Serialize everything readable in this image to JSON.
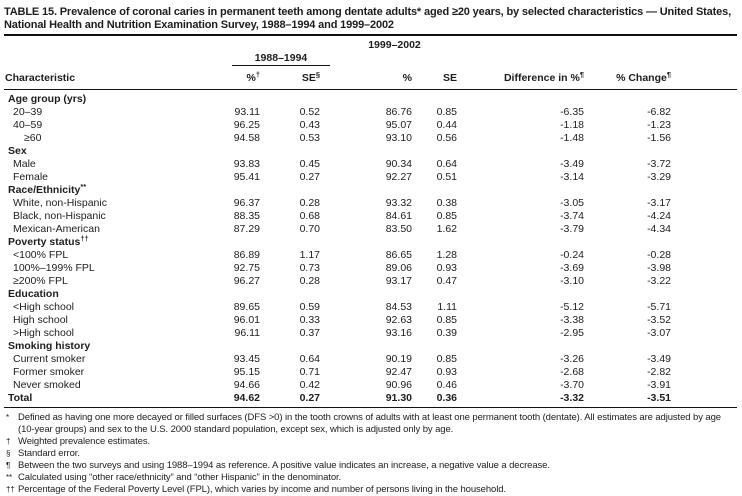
{
  "title": "TABLE 15. Prevalence of coronal caries in permanent teeth among dentate adults* aged ≥20 years, by selected characteristics — United States, National Health and Nutrition Examination Survey, 1988–1994 and 1999–2002",
  "table": {
    "col_groups": [
      {
        "label": "1988–1994"
      },
      {
        "label": "1999–2002"
      }
    ],
    "columns": [
      {
        "label": "Characteristic",
        "sup": ""
      },
      {
        "label": "%",
        "sup": "†"
      },
      {
        "label": "SE",
        "sup": "§"
      },
      {
        "label": "%",
        "sup": ""
      },
      {
        "label": "SE",
        "sup": ""
      },
      {
        "label": "Difference in %",
        "sup": "¶"
      },
      {
        "label": "% Change",
        "sup": "¶"
      }
    ],
    "rows": [
      {
        "type": "section",
        "label": "Age group (yrs)",
        "sup": ""
      },
      {
        "type": "data",
        "label": "20–39",
        "sup": "",
        "indent": 1,
        "values": [
          "93.11",
          "0.52",
          "86.76",
          "0.85",
          "-6.35",
          "-6.82"
        ]
      },
      {
        "type": "data",
        "label": "40–59",
        "sup": "",
        "indent": 1,
        "values": [
          "96.25",
          "0.43",
          "95.07",
          "0.44",
          "-1.18",
          "-1.23"
        ]
      },
      {
        "type": "data",
        "label": "≥60",
        "sup": "",
        "indent": 2,
        "values": [
          "94.58",
          "0.53",
          "93.10",
          "0.56",
          "-1.48",
          "-1.56"
        ]
      },
      {
        "type": "section",
        "label": "Sex",
        "sup": ""
      },
      {
        "type": "data",
        "label": "Male",
        "sup": "",
        "indent": 1,
        "values": [
          "93.83",
          "0.45",
          "90.34",
          "0.64",
          "-3.49",
          "-3.72"
        ]
      },
      {
        "type": "data",
        "label": "Female",
        "sup": "",
        "indent": 1,
        "values": [
          "95.41",
          "0.27",
          "92.27",
          "0.51",
          "-3.14",
          "-3.29"
        ]
      },
      {
        "type": "section",
        "label": "Race/Ethnicity",
        "sup": "**"
      },
      {
        "type": "data",
        "label": "White, non-Hispanic",
        "sup": "",
        "indent": 1,
        "values": [
          "96.37",
          "0.28",
          "93.32",
          "0.38",
          "-3.05",
          "-3.17"
        ]
      },
      {
        "type": "data",
        "label": "Black, non-Hispanic",
        "sup": "",
        "indent": 1,
        "values": [
          "88.35",
          "0.68",
          "84.61",
          "0.85",
          "-3.74",
          "-4.24"
        ]
      },
      {
        "type": "data",
        "label": "Mexican-American",
        "sup": "",
        "indent": 1,
        "values": [
          "87.29",
          "0.70",
          "83.50",
          "1.62",
          "-3.79",
          "-4.34"
        ]
      },
      {
        "type": "section",
        "label": "Poverty status",
        "sup": "††"
      },
      {
        "type": "data",
        "label": "<100% FPL",
        "sup": "",
        "indent": 1,
        "values": [
          "86.89",
          "1.17",
          "86.65",
          "1.28",
          "-0.24",
          "-0.28"
        ]
      },
      {
        "type": "data",
        "label": "100%–199% FPL",
        "sup": "",
        "indent": 1,
        "values": [
          "92.75",
          "0.73",
          "89.06",
          "0.93",
          "-3.69",
          "-3.98"
        ]
      },
      {
        "type": "data",
        "label": "≥200% FPL",
        "sup": "",
        "indent": 1,
        "values": [
          "96.27",
          "0.28",
          "93.17",
          "0.47",
          "-3.10",
          "-3.22"
        ]
      },
      {
        "type": "section",
        "label": "Education",
        "sup": ""
      },
      {
        "type": "data",
        "label": "<High school",
        "sup": "",
        "indent": 1,
        "values": [
          "89.65",
          "0.59",
          "84.53",
          "1.11",
          "-5.12",
          "-5.71"
        ]
      },
      {
        "type": "data",
        "label": "High school",
        "sup": "",
        "indent": 1,
        "values": [
          "96.01",
          "0.33",
          "92.63",
          "0.85",
          "-3.38",
          "-3.52"
        ]
      },
      {
        "type": "data",
        "label": ">High school",
        "sup": "",
        "indent": 1,
        "values": [
          "96.11",
          "0.37",
          "93.16",
          "0.39",
          "-2.95",
          "-3.07"
        ]
      },
      {
        "type": "section",
        "label": "Smoking history",
        "sup": ""
      },
      {
        "type": "data",
        "label": "Current smoker",
        "sup": "",
        "indent": 1,
        "values": [
          "93.45",
          "0.64",
          "90.19",
          "0.85",
          "-3.26",
          "-3.49"
        ]
      },
      {
        "type": "data",
        "label": "Former smoker",
        "sup": "",
        "indent": 1,
        "values": [
          "95.15",
          "0.71",
          "92.47",
          "0.93",
          "-2.68",
          "-2.82"
        ]
      },
      {
        "type": "data",
        "label": "Never smoked",
        "sup": "",
        "indent": 1,
        "values": [
          "94.66",
          "0.42",
          "90.96",
          "0.46",
          "-3.70",
          "-3.91"
        ]
      },
      {
        "type": "total",
        "label": "Total",
        "sup": "",
        "indent": 0,
        "values": [
          "94.62",
          "0.27",
          "91.30",
          "0.36",
          "-3.32",
          "-3.51"
        ]
      }
    ]
  },
  "footnotes": [
    {
      "marker": "*",
      "text": "Defined as having one more decayed or filled surfaces (DFS >0) in the tooth crowns of adults with at least one permanent tooth (dentate). All estimates are adjusted by age (10-year groups) and sex to the U.S. 2000 standard population, except sex, which is adjusted only by age."
    },
    {
      "marker": "†",
      "text": "Weighted prevalence estimates."
    },
    {
      "marker": "§",
      "text": "Standard error."
    },
    {
      "marker": "¶",
      "text": "Between the two surveys and using 1988–1994 as reference. A positive value indicates an increase, a negative value a decrease."
    },
    {
      "marker": "**",
      "text": "Calculated using “other race/ethnicity” and “other Hispanic” in the denominator."
    },
    {
      "marker": "††",
      "text": "Percentage of the Federal Poverty Level (FPL), which varies by income and number of persons living in the household."
    }
  ]
}
